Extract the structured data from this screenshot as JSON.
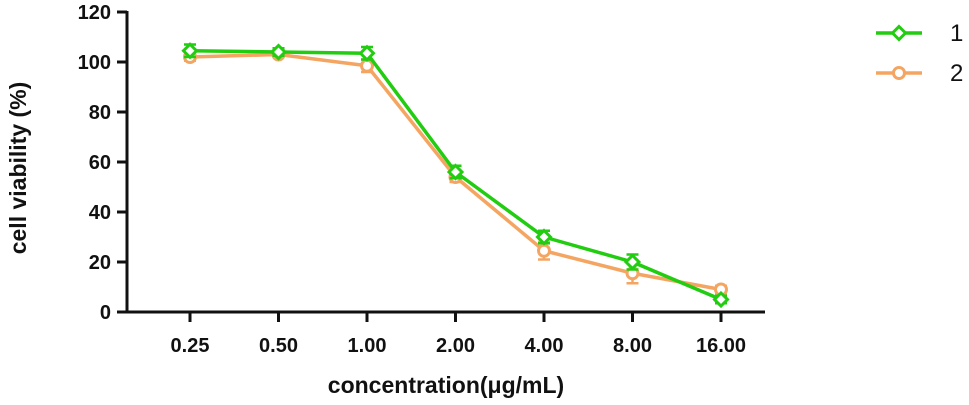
{
  "chart_data": {
    "type": "line",
    "title": "",
    "xlabel": "concentration(μg/mL)",
    "ylabel": "cell viability  (%)",
    "categories": [
      "0.25",
      "0.50",
      "1.00",
      "2.00",
      "4.00",
      "8.00",
      "16.00"
    ],
    "ylim": [
      0,
      120
    ],
    "yticks": [
      "0",
      "20",
      "40",
      "60",
      "80",
      "100",
      "120"
    ],
    "grid": false,
    "legend_position": "top-right",
    "series": [
      {
        "name": "1",
        "marker": "diamond",
        "color": "#22cc11",
        "values": [
          104.5,
          104,
          103.5,
          56,
          30,
          20,
          5
        ],
        "errors": [
          2.5,
          1.5,
          2.5,
          2.5,
          2.5,
          3,
          1.5
        ]
      },
      {
        "name": "2",
        "marker": "circle",
        "color": "#f5a562",
        "values": [
          102,
          103,
          98.5,
          54,
          24.5,
          15.5,
          9
        ],
        "errors": [
          1.5,
          1,
          2.5,
          2,
          3.5,
          4,
          1.5
        ]
      }
    ]
  }
}
